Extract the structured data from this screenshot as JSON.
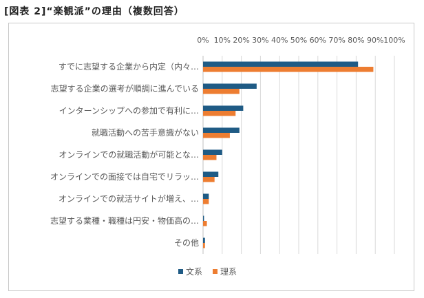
{
  "figure_title": "[図表 2]“楽観派”の理由（複数回答）",
  "colors": {
    "bunkei": "#1f5b85",
    "rikei": "#ed7d31",
    "grid": "#d9d9d9",
    "text": "#595959"
  },
  "chart_data": {
    "type": "bar",
    "orientation": "horizontal",
    "title": "",
    "xlabel": "",
    "ylabel": "",
    "xlim": [
      0,
      100
    ],
    "tick_values": [
      0,
      10,
      20,
      30,
      40,
      50,
      60,
      70,
      80,
      90,
      100
    ],
    "tick_labels": [
      "0%",
      "10%",
      "20%",
      "30%",
      "40%",
      "50%",
      "60%",
      "70%",
      "80%",
      "90%",
      "100%"
    ],
    "categories": [
      "すでに志望する企業から内定（内々…",
      "志望する企業の選考が順調に進んでいる",
      "インターンシップへの参加で有利に…",
      "就職活動への苦手意識がない",
      "オンラインでの就職活動が可能とな…",
      "オンラインでの面接では自宅でリラッ…",
      "オンラインでの就活サイトが増え、…",
      "志望する業種・職種は円安・物価高の…",
      "その他"
    ],
    "series": [
      {
        "name": "文系",
        "values": [
          81,
          28,
          21,
          19,
          10,
          8,
          3,
          0.5,
          1
        ]
      },
      {
        "name": "理系",
        "values": [
          89,
          19,
          17,
          14,
          7,
          6,
          3,
          2,
          1
        ]
      }
    ],
    "legend_position": "bottom"
  }
}
